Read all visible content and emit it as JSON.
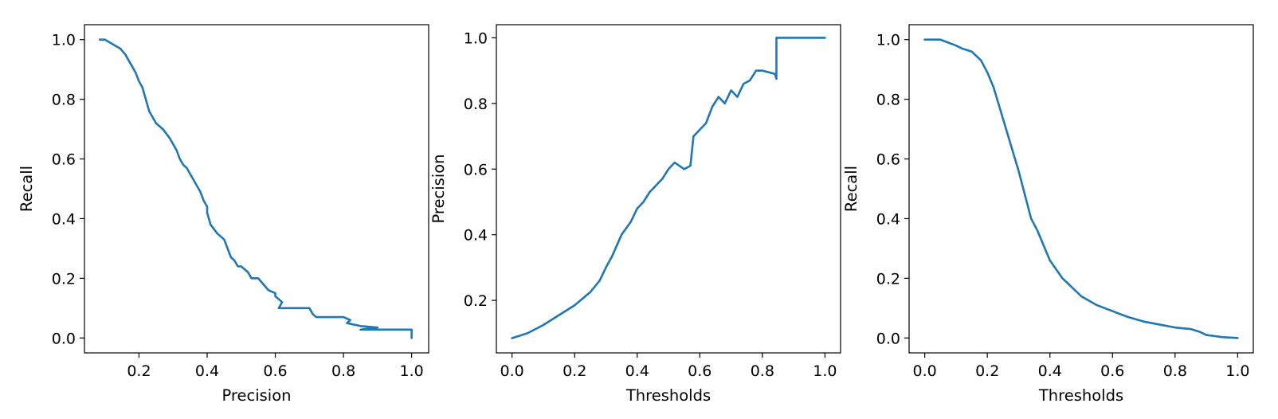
{
  "chart_data": [
    {
      "type": "line",
      "title": "",
      "xlabel": "Precision",
      "ylabel": "Recall",
      "xlim": [
        0.04,
        1.05
      ],
      "ylim": [
        -0.05,
        1.05
      ],
      "xticks": [
        0.2,
        0.4,
        0.6,
        0.8,
        1.0
      ],
      "yticks": [
        0.0,
        0.2,
        0.4,
        0.6,
        0.8,
        1.0
      ],
      "xtick_labels": [
        "0.2",
        "0.4",
        "0.6",
        "0.8",
        "1.0"
      ],
      "ytick_labels": [
        "0.0",
        "0.2",
        "0.4",
        "0.6",
        "0.8",
        "1.0"
      ],
      "grid": false,
      "color": "#1f77b4",
      "series": [
        {
          "x": [
            0.085,
            0.1,
            0.13,
            0.145,
            0.16,
            0.175,
            0.19,
            0.2,
            0.21,
            0.22,
            0.23,
            0.24,
            0.25,
            0.27,
            0.29,
            0.3,
            0.31,
            0.32,
            0.33,
            0.34,
            0.35,
            0.36,
            0.37,
            0.38,
            0.39,
            0.4,
            0.4,
            0.405,
            0.41,
            0.43,
            0.45,
            0.46,
            0.47,
            0.48,
            0.49,
            0.5,
            0.52,
            0.53,
            0.55,
            0.58,
            0.6,
            0.6,
            0.62,
            0.61,
            0.65,
            0.7,
            0.71,
            0.72,
            0.8,
            0.82,
            0.81,
            0.83,
            0.85,
            0.9,
            0.85,
            1.0,
            1.0
          ],
          "y": [
            1.0,
            1.0,
            0.98,
            0.97,
            0.95,
            0.92,
            0.89,
            0.86,
            0.84,
            0.8,
            0.76,
            0.74,
            0.72,
            0.7,
            0.67,
            0.65,
            0.63,
            0.6,
            0.58,
            0.57,
            0.55,
            0.53,
            0.51,
            0.49,
            0.46,
            0.44,
            0.42,
            0.4,
            0.38,
            0.35,
            0.33,
            0.3,
            0.27,
            0.26,
            0.24,
            0.24,
            0.22,
            0.2,
            0.2,
            0.16,
            0.15,
            0.14,
            0.12,
            0.1,
            0.1,
            0.1,
            0.08,
            0.07,
            0.07,
            0.06,
            0.05,
            0.045,
            0.04,
            0.035,
            0.028,
            0.028,
            0.0
          ]
        }
      ]
    },
    {
      "type": "line",
      "title": "",
      "xlabel": "Thresholds",
      "ylabel": "Precision",
      "xlim": [
        -0.05,
        1.05
      ],
      "ylim": [
        0.04,
        1.04
      ],
      "xticks": [
        0.0,
        0.2,
        0.4,
        0.6,
        0.8,
        1.0
      ],
      "yticks": [
        0.2,
        0.4,
        0.6,
        0.8,
        1.0
      ],
      "xtick_labels": [
        "0.0",
        "0.2",
        "0.4",
        "0.6",
        "0.8",
        "1.0"
      ],
      "ytick_labels": [
        "0.2",
        "0.4",
        "0.6",
        "0.8",
        "1.0"
      ],
      "grid": false,
      "color": "#1f77b4",
      "series": [
        {
          "x": [
            0.0,
            0.05,
            0.1,
            0.15,
            0.2,
            0.25,
            0.28,
            0.3,
            0.32,
            0.35,
            0.38,
            0.4,
            0.42,
            0.44,
            0.46,
            0.48,
            0.5,
            0.52,
            0.55,
            0.57,
            0.58,
            0.6,
            0.62,
            0.64,
            0.66,
            0.68,
            0.7,
            0.72,
            0.74,
            0.76,
            0.78,
            0.8,
            0.84,
            0.845,
            0.845,
            0.85,
            1.0
          ],
          "y": [
            0.085,
            0.1,
            0.125,
            0.155,
            0.185,
            0.225,
            0.26,
            0.3,
            0.335,
            0.4,
            0.44,
            0.48,
            0.5,
            0.53,
            0.55,
            0.57,
            0.6,
            0.62,
            0.6,
            0.61,
            0.7,
            0.72,
            0.74,
            0.79,
            0.82,
            0.8,
            0.84,
            0.82,
            0.86,
            0.87,
            0.9,
            0.9,
            0.89,
            0.875,
            1.0,
            1.0,
            1.0
          ]
        }
      ]
    },
    {
      "type": "line",
      "title": "",
      "xlabel": "Thresholds",
      "ylabel": "Recall",
      "xlim": [
        -0.05,
        1.05
      ],
      "ylim": [
        -0.05,
        1.05
      ],
      "xticks": [
        0.0,
        0.2,
        0.4,
        0.6,
        0.8,
        1.0
      ],
      "yticks": [
        0.0,
        0.2,
        0.4,
        0.6,
        0.8,
        1.0
      ],
      "xtick_labels": [
        "0.0",
        "0.2",
        "0.4",
        "0.6",
        "0.8",
        "1.0"
      ],
      "ytick_labels": [
        "0.0",
        "0.2",
        "0.4",
        "0.6",
        "0.8",
        "1.0"
      ],
      "grid": false,
      "color": "#1f77b4",
      "series": [
        {
          "x": [
            0.0,
            0.05,
            0.1,
            0.12,
            0.15,
            0.18,
            0.2,
            0.22,
            0.24,
            0.26,
            0.28,
            0.3,
            0.32,
            0.34,
            0.36,
            0.38,
            0.4,
            0.42,
            0.44,
            0.46,
            0.48,
            0.5,
            0.55,
            0.6,
            0.65,
            0.7,
            0.75,
            0.8,
            0.85,
            0.88,
            0.9,
            0.95,
            1.0
          ],
          "y": [
            1.0,
            1.0,
            0.98,
            0.97,
            0.96,
            0.93,
            0.89,
            0.84,
            0.77,
            0.7,
            0.63,
            0.56,
            0.48,
            0.4,
            0.36,
            0.31,
            0.26,
            0.23,
            0.2,
            0.18,
            0.16,
            0.14,
            0.11,
            0.09,
            0.07,
            0.055,
            0.045,
            0.035,
            0.03,
            0.02,
            0.01,
            0.003,
            0.0
          ]
        }
      ]
    }
  ]
}
